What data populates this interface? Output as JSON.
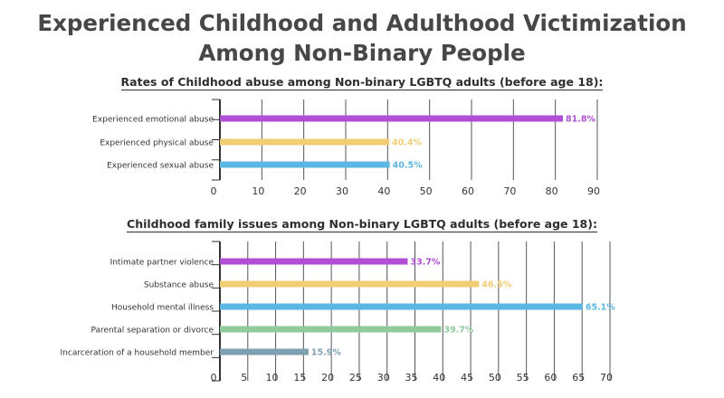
{
  "title_line1": "Experienced Childhood and Adulthood Victimization",
  "title_line2": "Among Non-Binary People",
  "chart_data": [
    {
      "type": "bar",
      "orientation": "horizontal",
      "title": "Rates of Childhood abuse among Non-binary LGBTQ adults (before age 18):",
      "categories": [
        "Experienced emotional abuse",
        "Experienced physical abuse",
        "Experienced sexual abuse"
      ],
      "values": [
        81.8,
        40.4,
        40.5
      ],
      "labels": [
        "81.8%",
        "40.4%",
        "40.5%"
      ],
      "colors": [
        "#b04fd6",
        "#f2cd74",
        "#5bb6e3"
      ],
      "xlim": [
        0,
        90
      ],
      "ticks": [
        0,
        10,
        20,
        30,
        40,
        50,
        60,
        70,
        80,
        90
      ],
      "grid": true
    },
    {
      "type": "bar",
      "orientation": "horizontal",
      "title": "Childhood family issues among Non-binary LGBTQ adults (before age 18):",
      "categories": [
        "Intimate partner violence",
        "Substance abuse",
        "Household mental illness",
        "Parental separation or divorce",
        "Incarceration of a household member"
      ],
      "values": [
        33.7,
        46.5,
        65.1,
        39.7,
        15.9
      ],
      "labels": [
        "33.7%",
        "46.5%",
        "65.1%",
        "39.7%",
        "15.9%"
      ],
      "colors": [
        "#b04fd6",
        "#f2cd74",
        "#5bb6e3",
        "#8fca9e",
        "#7f9fb2"
      ],
      "xlim": [
        0,
        70
      ],
      "ticks": [
        0,
        5,
        10,
        15,
        20,
        25,
        30,
        35,
        40,
        45,
        50,
        55,
        60,
        65,
        70
      ],
      "grid": true
    }
  ]
}
